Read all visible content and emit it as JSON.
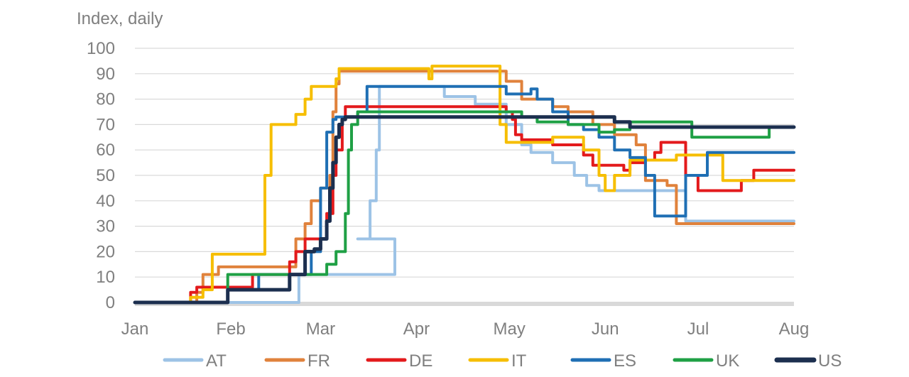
{
  "chart_data": {
    "type": "line",
    "ylabel": "Index, daily",
    "ylim": [
      0,
      100
    ],
    "yticks": [
      "0",
      "10",
      "20",
      "30",
      "40",
      "50",
      "60",
      "70",
      "80",
      "90",
      "100"
    ],
    "xticks": [
      "Jan",
      "Feb",
      "Mar",
      "Apr",
      "May",
      "Jun",
      "Jul",
      "Aug"
    ],
    "xlim_days": [
      0,
      213
    ],
    "grid": true,
    "legend_position": "bottom",
    "series": [
      {
        "name": "AT",
        "color": "#9dc3e6",
        "points": [
          [
            0,
            0
          ],
          [
            53,
            0
          ],
          [
            53,
            11
          ],
          [
            84,
            11
          ],
          [
            84,
            25
          ],
          [
            72,
            25
          ],
          [
            76,
            25
          ],
          [
            76,
            40
          ],
          [
            78,
            40
          ],
          [
            78,
            60
          ],
          [
            79,
            60
          ],
          [
            79,
            85
          ],
          [
            85,
            85
          ],
          [
            85,
            85
          ],
          [
            100,
            85
          ],
          [
            100,
            81
          ],
          [
            110,
            81
          ],
          [
            110,
            78
          ],
          [
            120,
            78
          ],
          [
            120,
            70
          ],
          [
            125,
            70
          ],
          [
            125,
            62
          ],
          [
            128,
            62
          ],
          [
            128,
            59
          ],
          [
            135,
            59
          ],
          [
            135,
            55
          ],
          [
            142,
            55
          ],
          [
            142,
            50
          ],
          [
            146,
            50
          ],
          [
            146,
            46
          ],
          [
            150,
            46
          ],
          [
            150,
            44
          ],
          [
            178,
            44
          ],
          [
            178,
            32
          ],
          [
            213,
            32
          ]
        ]
      },
      {
        "name": "FR",
        "color": "#e0823c",
        "points": [
          [
            0,
            0
          ],
          [
            20,
            0
          ],
          [
            20,
            4
          ],
          [
            22,
            4
          ],
          [
            22,
            11
          ],
          [
            27,
            11
          ],
          [
            27,
            14
          ],
          [
            40,
            14
          ],
          [
            40,
            14
          ],
          [
            52,
            14
          ],
          [
            52,
            25
          ],
          [
            55,
            25
          ],
          [
            55,
            31
          ],
          [
            57,
            31
          ],
          [
            57,
            40
          ],
          [
            60,
            40
          ],
          [
            60,
            45
          ],
          [
            63,
            45
          ],
          [
            63,
            50
          ],
          [
            64,
            50
          ],
          [
            64,
            75
          ],
          [
            65,
            75
          ],
          [
            65,
            86
          ],
          [
            66,
            86
          ],
          [
            66,
            91
          ],
          [
            120,
            91
          ],
          [
            120,
            87
          ],
          [
            125,
            87
          ],
          [
            125,
            80
          ],
          [
            135,
            80
          ],
          [
            135,
            77
          ],
          [
            140,
            77
          ],
          [
            140,
            75
          ],
          [
            148,
            75
          ],
          [
            148,
            70
          ],
          [
            155,
            70
          ],
          [
            155,
            66
          ],
          [
            162,
            66
          ],
          [
            162,
            62
          ],
          [
            165,
            62
          ],
          [
            165,
            48
          ],
          [
            172,
            48
          ],
          [
            172,
            46
          ],
          [
            175,
            46
          ],
          [
            175,
            31
          ],
          [
            213,
            31
          ]
        ]
      },
      {
        "name": "DE",
        "color": "#e31a1c",
        "points": [
          [
            0,
            0
          ],
          [
            18,
            0
          ],
          [
            18,
            4
          ],
          [
            20,
            4
          ],
          [
            20,
            6
          ],
          [
            25,
            6
          ],
          [
            25,
            6
          ],
          [
            38,
            6
          ],
          [
            38,
            11
          ],
          [
            45,
            11
          ],
          [
            45,
            11
          ],
          [
            50,
            11
          ],
          [
            50,
            16
          ],
          [
            52,
            16
          ],
          [
            52,
            20
          ],
          [
            55,
            20
          ],
          [
            55,
            25
          ],
          [
            62,
            25
          ],
          [
            62,
            35
          ],
          [
            64,
            35
          ],
          [
            64,
            50
          ],
          [
            65,
            50
          ],
          [
            65,
            60
          ],
          [
            67,
            60
          ],
          [
            67,
            72
          ],
          [
            68,
            72
          ],
          [
            68,
            77
          ],
          [
            120,
            77
          ],
          [
            120,
            75
          ],
          [
            122,
            75
          ],
          [
            122,
            72
          ],
          [
            123,
            72
          ],
          [
            123,
            66
          ],
          [
            125,
            66
          ],
          [
            125,
            64
          ],
          [
            135,
            64
          ],
          [
            135,
            62
          ],
          [
            145,
            62
          ],
          [
            145,
            58
          ],
          [
            148,
            58
          ],
          [
            148,
            54
          ],
          [
            158,
            54
          ],
          [
            158,
            52
          ],
          [
            160,
            52
          ],
          [
            160,
            55
          ],
          [
            165,
            55
          ],
          [
            165,
            56
          ],
          [
            168,
            56
          ],
          [
            168,
            59
          ],
          [
            170,
            59
          ],
          [
            170,
            63
          ],
          [
            178,
            63
          ],
          [
            178,
            50
          ],
          [
            182,
            50
          ],
          [
            182,
            44
          ],
          [
            196,
            44
          ],
          [
            196,
            48
          ],
          [
            200,
            48
          ],
          [
            200,
            52
          ],
          [
            213,
            52
          ]
        ]
      },
      {
        "name": "IT",
        "color": "#f6be00",
        "points": [
          [
            0,
            0
          ],
          [
            18,
            0
          ],
          [
            18,
            2
          ],
          [
            22,
            2
          ],
          [
            22,
            5
          ],
          [
            25,
            5
          ],
          [
            25,
            19
          ],
          [
            40,
            19
          ],
          [
            40,
            19
          ],
          [
            42,
            19
          ],
          [
            42,
            50
          ],
          [
            44,
            50
          ],
          [
            44,
            70
          ],
          [
            52,
            70
          ],
          [
            52,
            74
          ],
          [
            55,
            74
          ],
          [
            55,
            80
          ],
          [
            57,
            80
          ],
          [
            57,
            85
          ],
          [
            60,
            85
          ],
          [
            60,
            85
          ],
          [
            65,
            85
          ],
          [
            65,
            88
          ],
          [
            66,
            88
          ],
          [
            66,
            92
          ],
          [
            95,
            92
          ],
          [
            95,
            88
          ],
          [
            96,
            88
          ],
          [
            96,
            93
          ],
          [
            118,
            93
          ],
          [
            118,
            70
          ],
          [
            120,
            70
          ],
          [
            120,
            63
          ],
          [
            135,
            63
          ],
          [
            135,
            65
          ],
          [
            145,
            65
          ],
          [
            145,
            60
          ],
          [
            150,
            60
          ],
          [
            150,
            50
          ],
          [
            152,
            50
          ],
          [
            152,
            44
          ],
          [
            155,
            44
          ],
          [
            155,
            50
          ],
          [
            160,
            50
          ],
          [
            160,
            56
          ],
          [
            175,
            56
          ],
          [
            175,
            58
          ],
          [
            190,
            58
          ],
          [
            190,
            48
          ],
          [
            213,
            48
          ]
        ]
      },
      {
        "name": "ES",
        "color": "#1f6fb4",
        "points": [
          [
            0,
            0
          ],
          [
            28,
            0
          ],
          [
            28,
            0
          ],
          [
            30,
            0
          ],
          [
            30,
            5
          ],
          [
            40,
            5
          ],
          [
            40,
            11
          ],
          [
            50,
            11
          ],
          [
            50,
            11
          ],
          [
            57,
            11
          ],
          [
            57,
            20
          ],
          [
            60,
            20
          ],
          [
            60,
            45
          ],
          [
            62,
            45
          ],
          [
            62,
            67
          ],
          [
            64,
            67
          ],
          [
            64,
            72
          ],
          [
            65,
            72
          ],
          [
            65,
            73
          ],
          [
            72,
            73
          ],
          [
            72,
            75
          ],
          [
            75,
            75
          ],
          [
            75,
            85
          ],
          [
            120,
            85
          ],
          [
            120,
            82
          ],
          [
            128,
            82
          ],
          [
            128,
            84
          ],
          [
            130,
            84
          ],
          [
            130,
            80
          ],
          [
            135,
            80
          ],
          [
            135,
            75
          ],
          [
            140,
            75
          ],
          [
            140,
            70
          ],
          [
            145,
            70
          ],
          [
            145,
            68
          ],
          [
            150,
            68
          ],
          [
            150,
            65
          ],
          [
            155,
            65
          ],
          [
            155,
            60
          ],
          [
            160,
            60
          ],
          [
            160,
            57
          ],
          [
            165,
            57
          ],
          [
            165,
            50
          ],
          [
            168,
            50
          ],
          [
            168,
            34
          ],
          [
            178,
            34
          ],
          [
            178,
            50
          ],
          [
            185,
            50
          ],
          [
            185,
            59
          ],
          [
            213,
            59
          ]
        ]
      },
      {
        "name": "UK",
        "color": "#1fa045",
        "points": [
          [
            0,
            0
          ],
          [
            28,
            0
          ],
          [
            28,
            0
          ],
          [
            30,
            0
          ],
          [
            30,
            11
          ],
          [
            50,
            11
          ],
          [
            50,
            11
          ],
          [
            62,
            11
          ],
          [
            62,
            15
          ],
          [
            65,
            15
          ],
          [
            65,
            20
          ],
          [
            68,
            20
          ],
          [
            68,
            35
          ],
          [
            69,
            35
          ],
          [
            69,
            60
          ],
          [
            70,
            60
          ],
          [
            70,
            70
          ],
          [
            72,
            70
          ],
          [
            72,
            75
          ],
          [
            125,
            75
          ],
          [
            125,
            73
          ],
          [
            130,
            73
          ],
          [
            130,
            71
          ],
          [
            140,
            71
          ],
          [
            140,
            70
          ],
          [
            150,
            70
          ],
          [
            150,
            67
          ],
          [
            155,
            67
          ],
          [
            155,
            68
          ],
          [
            160,
            68
          ],
          [
            160,
            71
          ],
          [
            180,
            71
          ],
          [
            180,
            65
          ],
          [
            205,
            65
          ],
          [
            205,
            69
          ],
          [
            213,
            69
          ]
        ]
      },
      {
        "name": "US",
        "color": "#1c2f4f",
        "points": [
          [
            0,
            0
          ],
          [
            28,
            0
          ],
          [
            28,
            0
          ],
          [
            30,
            0
          ],
          [
            30,
            5
          ],
          [
            50,
            5
          ],
          [
            50,
            11
          ],
          [
            55,
            11
          ],
          [
            55,
            20
          ],
          [
            58,
            20
          ],
          [
            58,
            21
          ],
          [
            60,
            21
          ],
          [
            60,
            25
          ],
          [
            62,
            25
          ],
          [
            62,
            32
          ],
          [
            63,
            32
          ],
          [
            63,
            45
          ],
          [
            64,
            45
          ],
          [
            64,
            55
          ],
          [
            65,
            55
          ],
          [
            65,
            65
          ],
          [
            66,
            65
          ],
          [
            66,
            70
          ],
          [
            67,
            70
          ],
          [
            67,
            72
          ],
          [
            68,
            72
          ],
          [
            68,
            73
          ],
          [
            155,
            73
          ],
          [
            155,
            71
          ],
          [
            160,
            71
          ],
          [
            160,
            69
          ],
          [
            213,
            69
          ]
        ]
      }
    ]
  }
}
